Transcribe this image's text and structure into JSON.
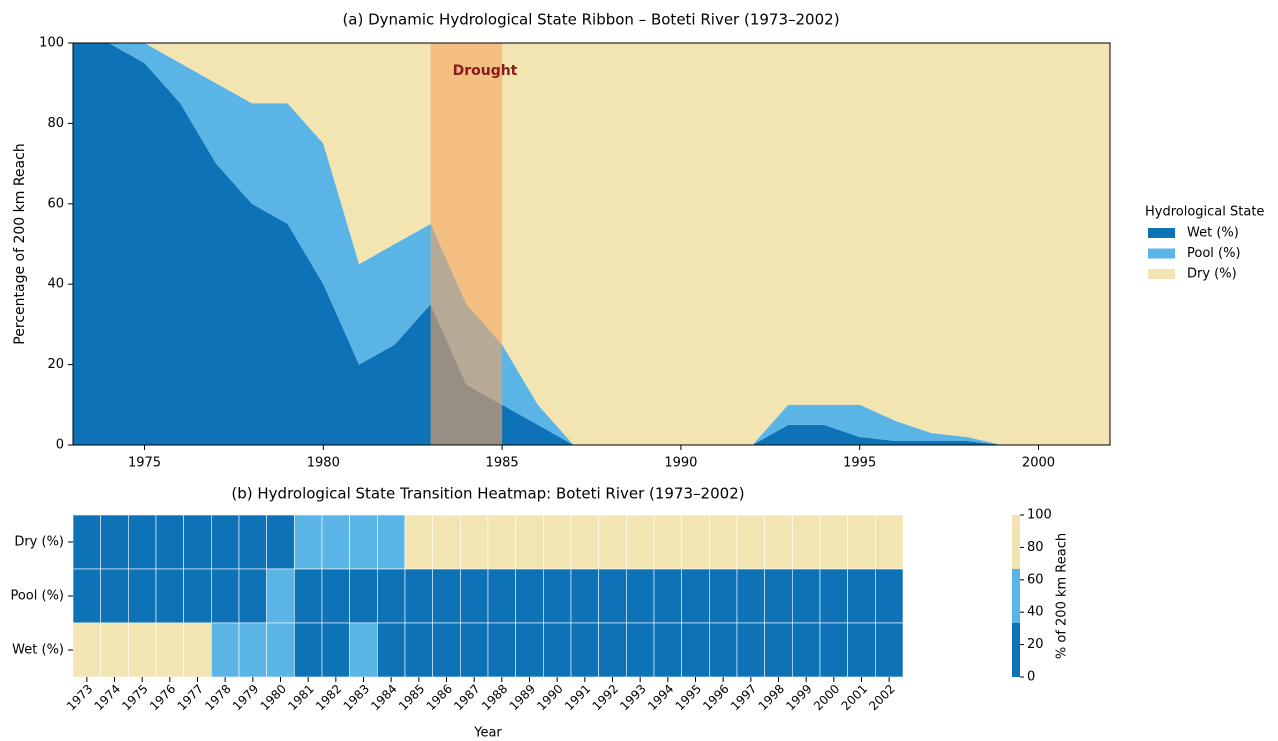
{
  "chart_data": [
    {
      "type": "stacked_area",
      "title": "(a) Dynamic Hydrological State Ribbon – Boteti River (1973–2002)",
      "y_label": "Percentage of 200 km Reach",
      "x": [
        1973,
        1974,
        1975,
        1976,
        1977,
        1978,
        1979,
        1980,
        1981,
        1982,
        1983,
        1984,
        1985,
        1986,
        1987,
        1988,
        1989,
        1990,
        1991,
        1992,
        1993,
        1994,
        1995,
        1996,
        1997,
        1998,
        1999,
        2000,
        2001,
        2002
      ],
      "series": [
        {
          "name": "Wet (%)",
          "color": "#0e72b6",
          "values": [
            100,
            100,
            95,
            85,
            70,
            60,
            55,
            40,
            20,
            25,
            35,
            15,
            10,
            5,
            0,
            0,
            0,
            0,
            0,
            0,
            5,
            5,
            2,
            1,
            1,
            1,
            0,
            0,
            0,
            0
          ]
        },
        {
          "name": "Pool (%)",
          "color": "#5ab4e5",
          "values": [
            0,
            0,
            5,
            10,
            20,
            25,
            30,
            35,
            25,
            25,
            20,
            20,
            15,
            5,
            0,
            0,
            0,
            0,
            0,
            0,
            5,
            5,
            8,
            5,
            2,
            1,
            0,
            0,
            0,
            0
          ]
        },
        {
          "name": "Dry (%)",
          "color": "#f3e5b1",
          "values": [
            0,
            0,
            0,
            5,
            10,
            15,
            15,
            25,
            55,
            50,
            45,
            65,
            75,
            90,
            100,
            100,
            100,
            100,
            100,
            100,
            90,
            90,
            90,
            94,
            97,
            98,
            100,
            100,
            100,
            100
          ]
        }
      ],
      "xlim": [
        1973,
        2002
      ],
      "xticks": [
        1975,
        1980,
        1985,
        1990,
        1995,
        2000
      ],
      "ylim": [
        0,
        100
      ],
      "yticks": [
        0,
        20,
        40,
        60,
        80,
        100
      ],
      "highlight": {
        "start": 1983,
        "end": 1985,
        "label": "Drought",
        "color": "#f4a460",
        "label_color": "#8b1a1a"
      },
      "legend_title": "Hydrological State",
      "legend": "right"
    },
    {
      "type": "heatmap",
      "title": "(b) Hydrological State Transition Heatmap: Boteti River (1973–2002)",
      "x_label": "Year",
      "categories": [
        1973,
        1974,
        1975,
        1976,
        1977,
        1978,
        1979,
        1980,
        1981,
        1982,
        1983,
        1984,
        1985,
        1986,
        1987,
        1988,
        1989,
        1990,
        1991,
        1992,
        1993,
        1994,
        1995,
        1996,
        1997,
        1998,
        1999,
        2000,
        2001,
        2002
      ],
      "rows": [
        "Dry (%)",
        "Pool (%)",
        "Wet (%)"
      ],
      "values": [
        [
          0,
          0,
          0,
          5,
          10,
          15,
          15,
          25,
          55,
          50,
          45,
          65,
          75,
          90,
          100,
          100,
          100,
          100,
          100,
          100,
          90,
          90,
          90,
          94,
          97,
          98,
          100,
          100,
          100,
          100
        ],
        [
          0,
          0,
          5,
          10,
          20,
          25,
          30,
          35,
          25,
          25,
          20,
          20,
          15,
          5,
          0,
          0,
          0,
          0,
          0,
          0,
          5,
          5,
          8,
          5,
          2,
          1,
          0,
          0,
          0,
          0
        ],
        [
          100,
          100,
          95,
          85,
          70,
          60,
          55,
          40,
          20,
          25,
          35,
          15,
          10,
          5,
          0,
          0,
          0,
          0,
          0,
          0,
          5,
          5,
          2,
          1,
          1,
          1,
          0,
          0,
          0,
          0
        ]
      ],
      "colors": [
        "#0e72b6",
        "#5ab4e5",
        "#f3e5b1"
      ],
      "clim": [
        0,
        100
      ],
      "colorbar_ticks": [
        0,
        20,
        40,
        60,
        80,
        100
      ],
      "colorbar_label": "% of 200 km Reach"
    }
  ]
}
